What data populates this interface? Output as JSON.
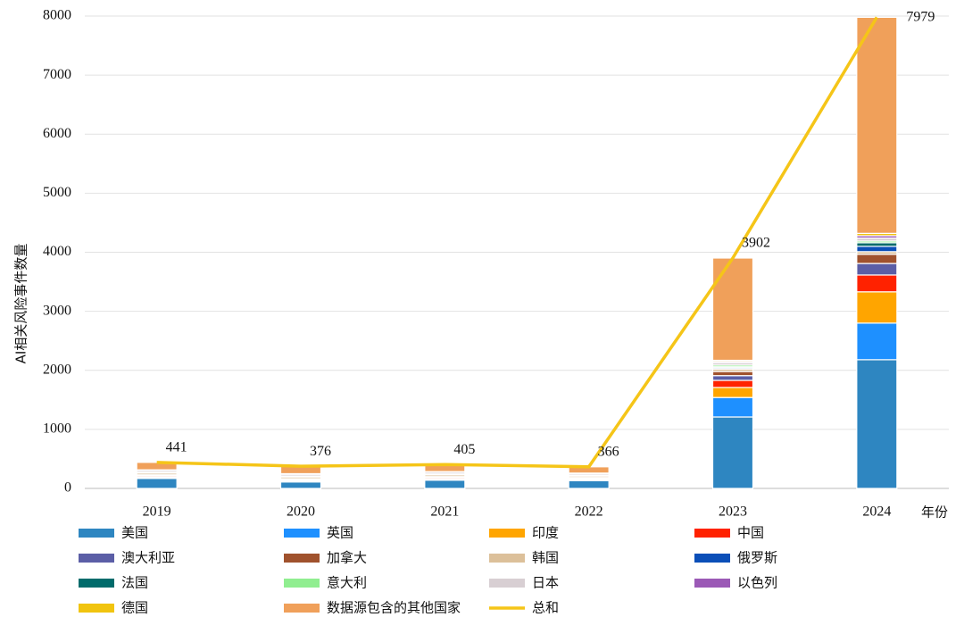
{
  "chart_data": {
    "type": "stacked-bar-line",
    "y_label": "AI相关风险事件数量",
    "x_label": "年份",
    "categories": [
      "2019",
      "2020",
      "2021",
      "2022",
      "2023",
      "2024"
    ],
    "ylim": [
      0,
      8000
    ],
    "yticks": [
      0,
      1000,
      2000,
      3000,
      4000,
      5000,
      6000,
      7000,
      8000
    ],
    "grid": true,
    "series": [
      {
        "name": "美国",
        "color": "#2e86c1",
        "values": [
          170,
          110,
          140,
          130,
          1210,
          2180
        ]
      },
      {
        "name": "英国",
        "color": "#1e90ff",
        "values": [
          10,
          10,
          10,
          10,
          330,
          620
        ]
      },
      {
        "name": "印度",
        "color": "#ffa500",
        "values": [
          10,
          10,
          10,
          10,
          170,
          530
        ]
      },
      {
        "name": "中国",
        "color": "#ff2200",
        "values": [
          20,
          15,
          20,
          15,
          120,
          285
        ]
      },
      {
        "name": "澳大利亚",
        "color": "#5b5ea6",
        "values": [
          10,
          10,
          10,
          10,
          80,
          195
        ]
      },
      {
        "name": "加拿大",
        "color": "#a0522d",
        "values": [
          10,
          10,
          10,
          10,
          70,
          155
        ]
      },
      {
        "name": "韩国",
        "color": "#dcc09a",
        "values": [
          30,
          30,
          30,
          25,
          40,
          45
        ]
      },
      {
        "name": "俄罗斯",
        "color": "#0b4fb8",
        "values": [
          5,
          5,
          5,
          5,
          20,
          90
        ]
      },
      {
        "name": "法国",
        "color": "#006b6b",
        "values": [
          5,
          5,
          5,
          5,
          20,
          60
        ]
      },
      {
        "name": "意大利",
        "color": "#90ee90",
        "values": [
          5,
          5,
          5,
          5,
          30,
          30
        ]
      },
      {
        "name": "日本",
        "color": "#d8cfd3",
        "values": [
          30,
          30,
          30,
          25,
          40,
          50
        ]
      },
      {
        "name": "以色列",
        "color": "#9b59b6",
        "values": [
          5,
          5,
          5,
          5,
          20,
          40
        ]
      },
      {
        "name": "德国",
        "color": "#f1c40f",
        "values": [
          5,
          5,
          5,
          5,
          20,
          40
        ]
      },
      {
        "name": "数据源包含的其他国家",
        "color": "#f0a05a",
        "values": [
          126,
          126,
          120,
          106,
          1732,
          3659
        ]
      }
    ],
    "line": {
      "name": "总和",
      "color": "#f5c518",
      "values": [
        441,
        376,
        405,
        366,
        3902,
        7979
      ]
    }
  }
}
